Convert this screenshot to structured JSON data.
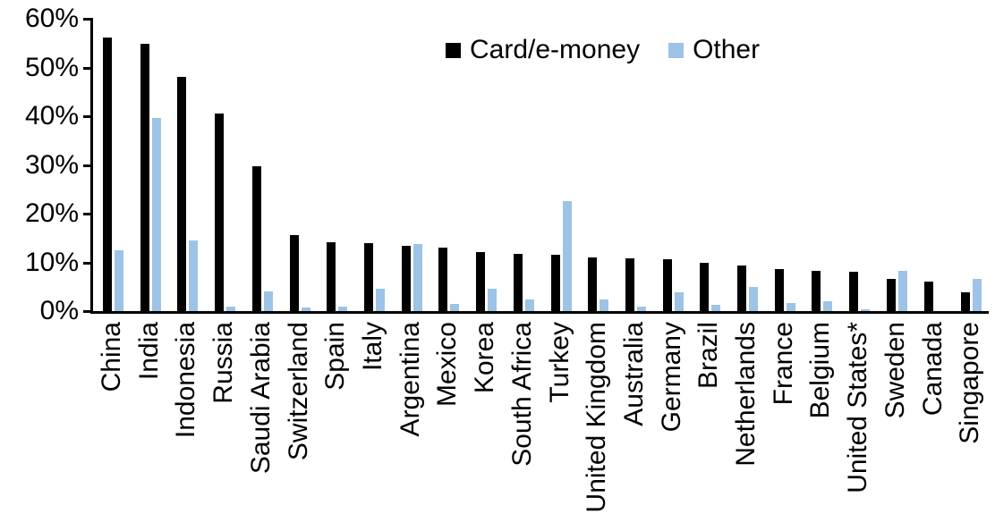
{
  "chart_data": {
    "type": "bar",
    "title": "",
    "xlabel": "",
    "ylabel": "",
    "ylim": [
      0,
      60
    ],
    "ytick_step": 10,
    "ytick_labels": [
      "0%",
      "10%",
      "20%",
      "30%",
      "40%",
      "50%",
      "60%"
    ],
    "grid": false,
    "legend_position": "top-center",
    "categories": [
      "China",
      "India",
      "Indonesia",
      "Russia",
      "Saudi Arabia",
      "Switzerland",
      "Spain",
      "Italy",
      "Argentina",
      "Mexico",
      "Korea",
      "South Africa",
      "Turkey",
      "United Kingdom",
      "Australia",
      "Germany",
      "Brazil",
      "Netherlands",
      "France",
      "Belgium",
      "United States*",
      "Sweden",
      "Canada",
      "Singapore"
    ],
    "series": [
      {
        "name": "Card/e-money",
        "color": "#000000",
        "values": [
          56.2,
          55.0,
          48.2,
          40.5,
          29.8,
          15.6,
          14.2,
          14.0,
          13.4,
          13.0,
          12.2,
          11.8,
          11.6,
          11.0,
          10.8,
          10.6,
          10.0,
          9.3,
          8.7,
          8.2,
          8.0,
          6.6,
          6.0,
          3.9
        ]
      },
      {
        "name": "Other",
        "color": "#9DC3E6",
        "values": [
          12.4,
          39.6,
          14.6,
          1.0,
          4.0,
          0.8,
          1.0,
          4.5,
          13.8,
          1.4,
          4.5,
          2.4,
          22.5,
          2.3,
          1.0,
          3.9,
          1.2,
          4.9,
          1.6,
          2.1,
          0.4,
          8.2,
          0.0,
          6.7
        ]
      }
    ]
  }
}
